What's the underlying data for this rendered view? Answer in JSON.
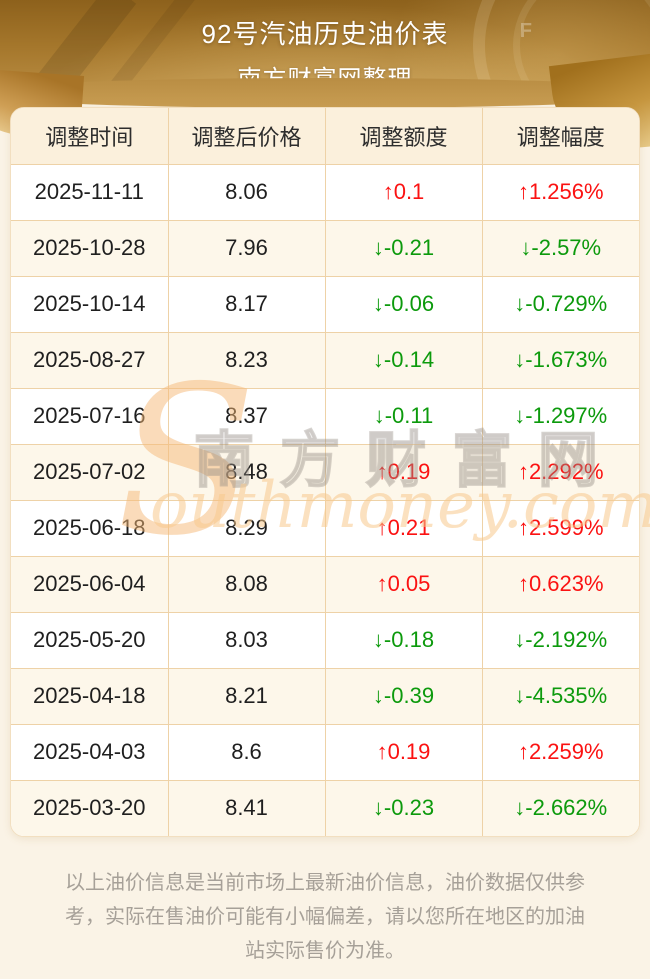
{
  "page": {
    "title": "92号汽油历史油价表",
    "subtitle": "南方财富网整理"
  },
  "table": {
    "headers": [
      "调整时间",
      "调整后价格",
      "调整额度",
      "调整幅度"
    ],
    "rows": [
      {
        "date": "2025-11-11",
        "price": "8.06",
        "change": "↑0.1",
        "pct": "↑1.256%",
        "dir": "up"
      },
      {
        "date": "2025-10-28",
        "price": "7.96",
        "change": "↓-0.21",
        "pct": "↓-2.57%",
        "dir": "down"
      },
      {
        "date": "2025-10-14",
        "price": "8.17",
        "change": "↓-0.06",
        "pct": "↓-0.729%",
        "dir": "down"
      },
      {
        "date": "2025-08-27",
        "price": "8.23",
        "change": "↓-0.14",
        "pct": "↓-1.673%",
        "dir": "down"
      },
      {
        "date": "2025-07-16",
        "price": "8.37",
        "change": "↓-0.11",
        "pct": "↓-1.297%",
        "dir": "down"
      },
      {
        "date": "2025-07-02",
        "price": "8.48",
        "change": "↑0.19",
        "pct": "↑2.292%",
        "dir": "up"
      },
      {
        "date": "2025-06-18",
        "price": "8.29",
        "change": "↑0.21",
        "pct": "↑2.599%",
        "dir": "up"
      },
      {
        "date": "2025-06-04",
        "price": "8.08",
        "change": "↑0.05",
        "pct": "↑0.623%",
        "dir": "up"
      },
      {
        "date": "2025-05-20",
        "price": "8.03",
        "change": "↓-0.18",
        "pct": "↓-2.192%",
        "dir": "down"
      },
      {
        "date": "2025-04-18",
        "price": "8.21",
        "change": "↓-0.39",
        "pct": "↓-4.535%",
        "dir": "down"
      },
      {
        "date": "2025-04-03",
        "price": "8.6",
        "change": "↑0.19",
        "pct": "↑2.259%",
        "dir": "up"
      },
      {
        "date": "2025-03-20",
        "price": "8.41",
        "change": "↓-0.23",
        "pct": "↓-2.662%",
        "dir": "down"
      }
    ]
  },
  "watermark": {
    "s": "S",
    "cn": "南方财富网",
    "en": "outhmoney.com"
  },
  "footer": {
    "note": "以上油价信息是当前市场上最新油价信息，油价数据仅供参考，实际在售油价可能有小幅偏差，请以您所在地区的加油站实际售价为准。"
  },
  "gauge": {
    "f_label": "F"
  },
  "colors": {
    "up_red": "#fb1212",
    "down_green": "#0c9a0c",
    "header_cell_bg": "#fbf0dc",
    "table_border": "#eed2a7",
    "page_bg": "#faf3e6",
    "hero_gold_dark": "#8d611c",
    "hero_gold_light": "#c89d52"
  },
  "chart_data": {
    "type": "table",
    "title": "92号汽油历史油价表",
    "subtitle": "南方财富网整理",
    "columns": [
      "调整时间",
      "调整后价格",
      "调整额度",
      "调整幅度"
    ],
    "rows": [
      [
        "2025-11-11",
        "8.06",
        "↑0.1",
        "↑1.256%"
      ],
      [
        "2025-10-28",
        "7.96",
        "↓-0.21",
        "↓-2.57%"
      ],
      [
        "2025-10-14",
        "8.17",
        "↓-0.06",
        "↓-0.729%"
      ],
      [
        "2025-08-27",
        "8.23",
        "↓-0.14",
        "↓-1.673%"
      ],
      [
        "2025-07-16",
        "8.37",
        "↓-0.11",
        "↓-1.297%"
      ],
      [
        "2025-07-02",
        "8.48",
        "↑0.19",
        "↑2.292%"
      ],
      [
        "2025-06-18",
        "8.29",
        "↑0.21",
        "↑2.599%"
      ],
      [
        "2025-06-04",
        "8.08",
        "↑0.05",
        "↑0.623%"
      ],
      [
        "2025-05-20",
        "8.03",
        "↓-0.18",
        "↓-2.192%"
      ],
      [
        "2025-04-18",
        "8.21",
        "↓-0.39",
        "↓-4.535%"
      ],
      [
        "2025-04-03",
        "8.6",
        "↑0.19",
        "↑2.259%"
      ],
      [
        "2025-03-20",
        "8.41",
        "↓-0.23",
        "↓-2.662%"
      ]
    ]
  }
}
